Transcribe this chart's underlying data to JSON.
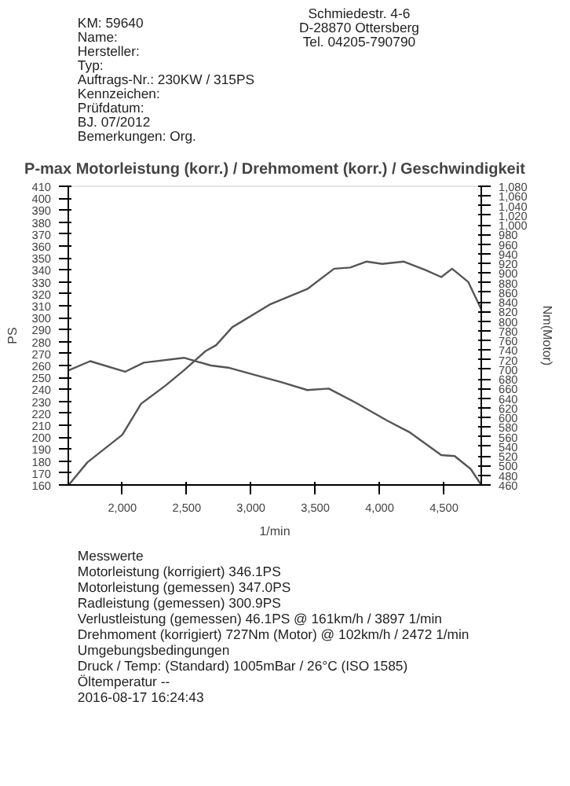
{
  "chart_data": {
    "type": "line",
    "title": "P-max Motorleistung (korr.) / Drehmoment (korr.) / Geschwindigkeit",
    "xlabel": "1/min",
    "ylabel": "PS",
    "y2label": "Nm(Motor)",
    "xlim": [
      1580,
      4790
    ],
    "xticks": [
      {
        "value": 2000,
        "label": "2,000"
      },
      {
        "value": 2500,
        "label": "2,500"
      },
      {
        "value": 3000,
        "label": "3,000"
      },
      {
        "value": 3500,
        "label": "3,500"
      },
      {
        "value": 4000,
        "label": "4,000"
      },
      {
        "value": 4500,
        "label": "4,500"
      }
    ],
    "ylim": [
      160,
      410
    ],
    "yticks": [
      160,
      170,
      180,
      190,
      200,
      210,
      220,
      230,
      240,
      250,
      260,
      270,
      280,
      290,
      300,
      310,
      320,
      330,
      340,
      350,
      360,
      370,
      380,
      390,
      400,
      410
    ],
    "y2lim": [
      460,
      1080
    ],
    "y2ticks": [
      460,
      480,
      500,
      520,
      540,
      560,
      580,
      600,
      620,
      640,
      660,
      680,
      700,
      720,
      740,
      760,
      780,
      800,
      820,
      840,
      860,
      880,
      900,
      920,
      940,
      960,
      980,
      {
        "value": 1000,
        "label": "1,000"
      },
      {
        "value": 1020,
        "label": "1,020"
      },
      {
        "value": 1040,
        "label": "1,040"
      },
      {
        "value": 1060,
        "label": "1,060"
      },
      {
        "value": 1080,
        "label": "1,080"
      }
    ],
    "series": [
      {
        "color": "#555555",
        "x": [
          1583,
          1729,
          2000,
          2146,
          2333,
          2479,
          2646,
          2729,
          2854,
          3146,
          3438,
          3646,
          3771,
          3896,
          4021,
          4188,
          4354,
          4479,
          4563,
          4688,
          4790
        ],
        "values": [
          160,
          179,
          202,
          228,
          243,
          256,
          272,
          277,
          292,
          311,
          324,
          341,
          342,
          347,
          345,
          347,
          340,
          334,
          341,
          330,
          307
        ]
      },
      {
        "color": "#555555",
        "axis": "y2",
        "x": [
          1583,
          1750,
          2021,
          2167,
          2479,
          2688,
          2833,
          3021,
          3229,
          3438,
          3604,
          3813,
          4063,
          4229,
          4479,
          4583,
          4708,
          4790
        ],
        "values": [
          698,
          717,
          695,
          714,
          724,
          708,
          703,
          689,
          674,
          657,
          660,
          631,
          593,
          570,
          522,
          520,
          493,
          460
        ]
      }
    ],
    "grid": false,
    "annotations": [
      "Schmiedestr. 4-6",
      "D-28870 Ottersberg",
      "Tel. 04205-790790",
      "KM: 59640",
      "Name:",
      "Hersteller:",
      "Typ:",
      "Auftrags-Nr.: 230KW / 315PS",
      "Kennzeichen:",
      "Prüfdatum:",
      "BJ. 07/2012",
      "Bemerkungen: Org.",
      "Messwerte",
      "Motorleistung (korrigiert) 346.1PS",
      "Motorleistung (gemessen) 347.0PS",
      "Radleistung (gemessen) 300.9PS",
      "Verlustleistung (gemessen) 46.1PS @ 161km/h / 3897 1/min",
      "Drehmoment (korrigiert) 727Nm (Motor) @ 102km/h / 2472 1/min",
      "Umgebungsbedingungen",
      "Druck / Temp: (Standard) 1005mBar / 26°C (ISO 1585)",
      "Öltemperatur --",
      "2016-08-17 16:24:43"
    ]
  }
}
